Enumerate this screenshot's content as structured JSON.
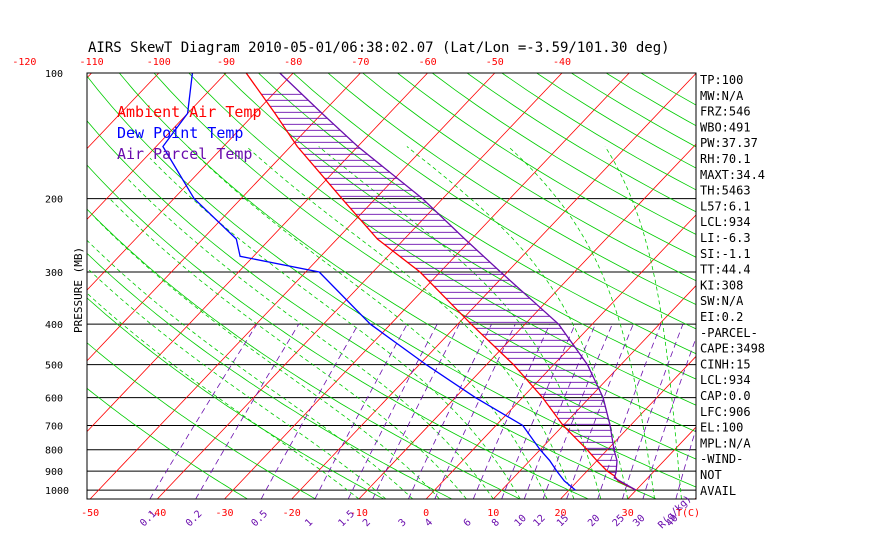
{
  "chart_data": {
    "type": "line",
    "title": "AIRS SkewT Diagram 2010-05-01/06:38:02.07 (Lat/Lon =-3.59/101.30 deg)",
    "ylabel": "PRESSURE (MB)",
    "xlabel": "T(C)",
    "mixing_ratio_unit": "R(g/kg)",
    "pressure_ticks": [
      100,
      200,
      300,
      400,
      500,
      600,
      700,
      800,
      900,
      1000
    ],
    "top_temp_ticks": [
      -120,
      -110,
      -100,
      -90,
      -80,
      -70,
      -60,
      -50,
      -40
    ],
    "bottom_temp_ticks": [
      -50,
      -40,
      -30,
      -20,
      -10,
      0,
      10,
      20,
      30
    ],
    "mixing_ratio_ticks": [
      "0.1",
      "0.2",
      "0.5",
      "1",
      "1.5",
      "2",
      "3",
      "4",
      "6",
      "8",
      "10",
      "12",
      "15",
      "20",
      "25",
      "30",
      "40"
    ],
    "legend": [
      {
        "label": "Ambient Air Temp",
        "color": "#ff0000"
      },
      {
        "label": "Dew Point Temp",
        "color": "#0000ff"
      },
      {
        "label": "Air Parcel Temp",
        "color": "#6a0dad"
      }
    ],
    "colors": {
      "isotherm": "#ff0000",
      "dry_adiabat": "#00cc00",
      "moist_adiabat": "#00cc00",
      "mixing_ratio": "#6a0dad",
      "isobar": "#000000",
      "cape_hatch": "#6a0dad"
    },
    "series": [
      {
        "name": "Ambient Air Temp",
        "points": [
          [
            1000,
            30
          ],
          [
            950,
            26
          ],
          [
            925,
            24.8
          ],
          [
            900,
            23
          ],
          [
            850,
            20
          ],
          [
            800,
            17
          ],
          [
            700,
            10
          ],
          [
            600,
            3
          ],
          [
            500,
            -6
          ],
          [
            400,
            -18
          ],
          [
            300,
            -33
          ],
          [
            250,
            -44
          ],
          [
            200,
            -55
          ],
          [
            150,
            -69
          ],
          [
            125,
            -77
          ],
          [
            100,
            -87
          ]
        ]
      },
      {
        "name": "Dew Point Temp",
        "points": [
          [
            1000,
            21
          ],
          [
            950,
            18
          ],
          [
            900,
            15.5
          ],
          [
            850,
            13
          ],
          [
            800,
            10
          ],
          [
            700,
            4
          ],
          [
            600,
            -7
          ],
          [
            500,
            -19
          ],
          [
            400,
            -33
          ],
          [
            300,
            -48
          ],
          [
            275,
            -62
          ],
          [
            250,
            -65
          ],
          [
            200,
            -77
          ],
          [
            150,
            -89
          ],
          [
            125,
            -90
          ],
          [
            100,
            -95
          ]
        ]
      },
      {
        "name": "Air Parcel Temp",
        "points": [
          [
            1000,
            30
          ],
          [
            934,
            25
          ],
          [
            906,
            24.5
          ],
          [
            850,
            23
          ],
          [
            800,
            21
          ],
          [
            700,
            17
          ],
          [
            600,
            12
          ],
          [
            500,
            5
          ],
          [
            400,
            -5
          ],
          [
            300,
            -21
          ],
          [
            250,
            -31
          ],
          [
            200,
            -43
          ],
          [
            150,
            -60
          ],
          [
            125,
            -70
          ],
          [
            100,
            -82
          ]
        ]
      }
    ],
    "skewt_note": "log-pressure vertical axis with skewed isotherms"
  },
  "indices": [
    "TP:100",
    "MW:N/A",
    "FRZ:546",
    "WBO:491",
    "PW:37.37",
    "RH:70.1",
    "MAXT:34.4",
    "TH:5463",
    "L57:6.1",
    "LCL:934",
    "LI:-6.3",
    "SI:-1.1",
    "TT:44.4",
    "KI:308",
    "SW:N/A",
    "EI:0.2",
    "-PARCEL-",
    "CAPE:3498",
    "CINH:15",
    "LCL:934",
    "CAP:0.0",
    "LFC:906",
    "EL:100",
    "MPL:N/A",
    "-WIND-",
    "NOT",
    "AVAIL"
  ]
}
